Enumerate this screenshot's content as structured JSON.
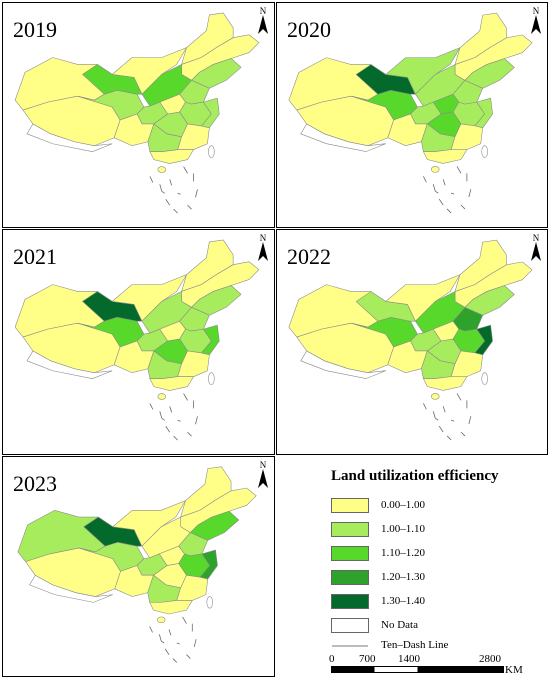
{
  "panels": [
    {
      "year": "2019",
      "cls": [
        "y",
        "y",
        "l",
        "m",
        "y",
        "y",
        "y",
        "l",
        "m",
        "l",
        "y",
        "l",
        "l",
        "l",
        "l",
        "y",
        "l",
        "y",
        "y"
      ]
    },
    {
      "year": "2020",
      "cls": [
        "y",
        "y",
        "m",
        "d",
        "l",
        "y",
        "y",
        "l",
        "l",
        "l",
        "m",
        "l",
        "l",
        "l",
        "m",
        "y",
        "l",
        "y",
        "y"
      ]
    },
    {
      "year": "2021",
      "cls": [
        "y",
        "y",
        "m",
        "d",
        "y",
        "y",
        "y",
        "l",
        "l",
        "l",
        "y",
        "l",
        "l",
        "m",
        "m",
        "y",
        "l",
        "y",
        "y"
      ]
    },
    {
      "year": "2022",
      "cls": [
        "y",
        "y",
        "m",
        "l",
        "y",
        "y",
        "y",
        "l",
        "m",
        "l",
        "y",
        "M",
        "m",
        "d",
        "l",
        "y",
        "l",
        "y",
        "y"
      ]
    },
    {
      "year": "2023",
      "cls": [
        "l",
        "y",
        "l",
        "d",
        "y",
        "y",
        "y",
        "m",
        "y",
        "l",
        "y",
        "l",
        "m",
        "M",
        "y",
        "y",
        "l",
        "y",
        "y"
      ]
    }
  ],
  "north_label": "N",
  "legend": {
    "title": "Land utilization efficiency",
    "items": [
      {
        "label": "0.00–1.00",
        "color": "#ffff88"
      },
      {
        "label": "1.00–1.10",
        "color": "#a6ec5c"
      },
      {
        "label": "1.10–1.20",
        "color": "#57d82a"
      },
      {
        "label": "1.20–1.30",
        "color": "#2ea22a"
      },
      {
        "label": "1.30–1.40",
        "color": "#046a2c"
      },
      {
        "label": "No Data",
        "color": "#ffffff"
      }
    ],
    "dash_line_label": "Ten–Dash Line"
  },
  "scale_bar": {
    "ticks": [
      "0",
      "700",
      "1400",
      "2800"
    ],
    "unit": "KM"
  }
}
